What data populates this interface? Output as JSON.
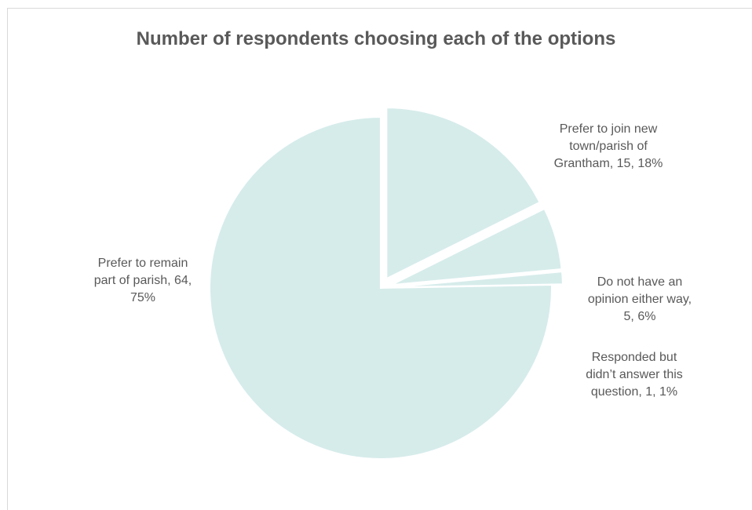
{
  "chart_data": {
    "type": "pie",
    "title": "Number of respondents choosing each of the options",
    "slices": [
      {
        "name": "Prefer to remain part of parish",
        "value": 64,
        "percent": "75%",
        "label_lines": [
          "Prefer to remain",
          "part of parish, 64,",
          "75%"
        ]
      },
      {
        "name": "Prefer to join new town/parish of Grantham",
        "value": 15,
        "percent": "18%",
        "label_lines": [
          "Prefer to join new",
          "town/parish of",
          "Grantham, 15, 18%"
        ]
      },
      {
        "name": "Do not have an opinion either way",
        "value": 5,
        "percent": "6%",
        "label_lines": [
          "Do not have an",
          "opinion either way,",
          "5, 6%"
        ]
      },
      {
        "name": "Responded but didn’t answer this question",
        "value": 1,
        "percent": "1%",
        "label_lines": [
          "Responded but",
          "didn’t answer this",
          "question, 1, 1%"
        ]
      }
    ],
    "slice_color": "#d6eceb",
    "slice_border": "#ffffff",
    "legend": "none"
  }
}
